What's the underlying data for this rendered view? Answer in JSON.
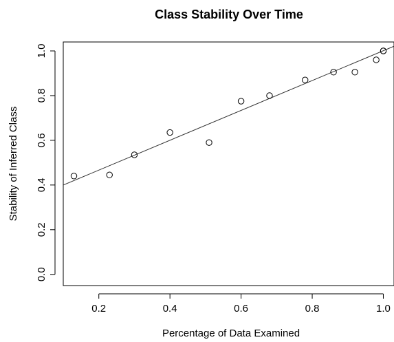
{
  "chart_data": {
    "type": "scatter",
    "title": "Class Stability Over Time",
    "xlabel": "Percentage of Data Examined",
    "ylabel": "Stability of Inferred Class",
    "xlim": [
      0.1,
      1.03
    ],
    "ylim": [
      -0.05,
      1.04
    ],
    "xticks": [
      0.2,
      0.4,
      0.6,
      0.8,
      1.0
    ],
    "xtick_labels": [
      "0.2",
      "0.4",
      "0.6",
      "0.8",
      "1.0"
    ],
    "yticks": [
      0.0,
      0.2,
      0.4,
      0.6,
      0.8,
      1.0
    ],
    "ytick_labels": [
      "0.0",
      "0.2",
      "0.4",
      "0.6",
      "0.8",
      "1.0"
    ],
    "grid": false,
    "points": [
      {
        "x": 0.13,
        "y": 0.44
      },
      {
        "x": 0.23,
        "y": 0.445
      },
      {
        "x": 0.3,
        "y": 0.535
      },
      {
        "x": 0.4,
        "y": 0.635
      },
      {
        "x": 0.51,
        "y": 0.59
      },
      {
        "x": 0.6,
        "y": 0.775
      },
      {
        "x": 0.68,
        "y": 0.8
      },
      {
        "x": 0.78,
        "y": 0.87
      },
      {
        "x": 0.86,
        "y": 0.905
      },
      {
        "x": 0.92,
        "y": 0.905
      },
      {
        "x": 0.98,
        "y": 0.96
      },
      {
        "x": 1.0,
        "y": 1.0
      },
      {
        "x": 1.0,
        "y": 1.0
      }
    ],
    "trend_line": {
      "intercept": 0.333,
      "slope": 0.668
    },
    "colors": {
      "points": "#000000",
      "line": "#333333",
      "frame": "#000000"
    }
  }
}
